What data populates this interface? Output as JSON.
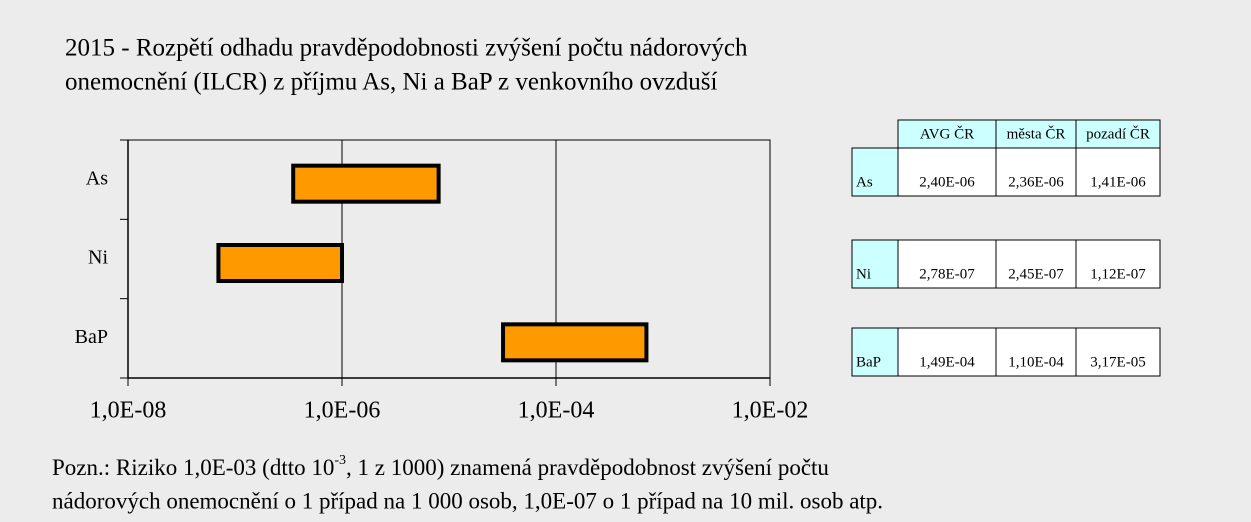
{
  "chart_data": {
    "type": "range_bar",
    "title": [
      "2015 - Rozpětí odhadu pravděpodobnosti zvýšení počtu nádorových",
      "onemocnění  (ILCR) z příjmu  As, Ni a BaP z venkovního ovzduší"
    ],
    "categories": [
      "As",
      "Ni",
      "BaP"
    ],
    "low": [
      3.5e-07,
      7e-08,
      3.2e-05
    ],
    "high": [
      8e-06,
      1e-06,
      0.0007
    ],
    "color": "#ff9900",
    "xlim": [
      1e-08,
      0.01
    ],
    "xscale": "log",
    "xticks": [
      {
        "value": 1e-08,
        "label": "1,0E-08"
      },
      {
        "value": 1e-06,
        "label": "1,0E-06"
      },
      {
        "value": 0.0001,
        "label": "1,0E-04"
      },
      {
        "value": 0.01,
        "label": "1,0E-02"
      }
    ],
    "grid": true
  },
  "table": {
    "header": [
      "AVG ČR",
      "města ČR",
      "pozadí ČR"
    ],
    "rows": [
      [
        "As",
        "2,40E-06",
        "2,36E-06",
        "1,41E-06"
      ],
      [
        "Ni",
        "2,78E-07",
        "2,45E-07",
        "1,12E-07"
      ],
      [
        "BaP",
        "1,49E-04",
        "1,10E-04",
        "3,17E-05"
      ]
    ]
  },
  "note": {
    "before": "Pozn.: Riziko 1,0E-03 (dtto 10",
    "sup": "-3",
    "after": ", 1 z 1000) znamená pravděpodobnost zvýšení počtu",
    "line2": "nádorových onemocnění o 1 případ na 1 000 osob, 1,0E-07 o 1 případ na 10 mil. osob atp."
  }
}
